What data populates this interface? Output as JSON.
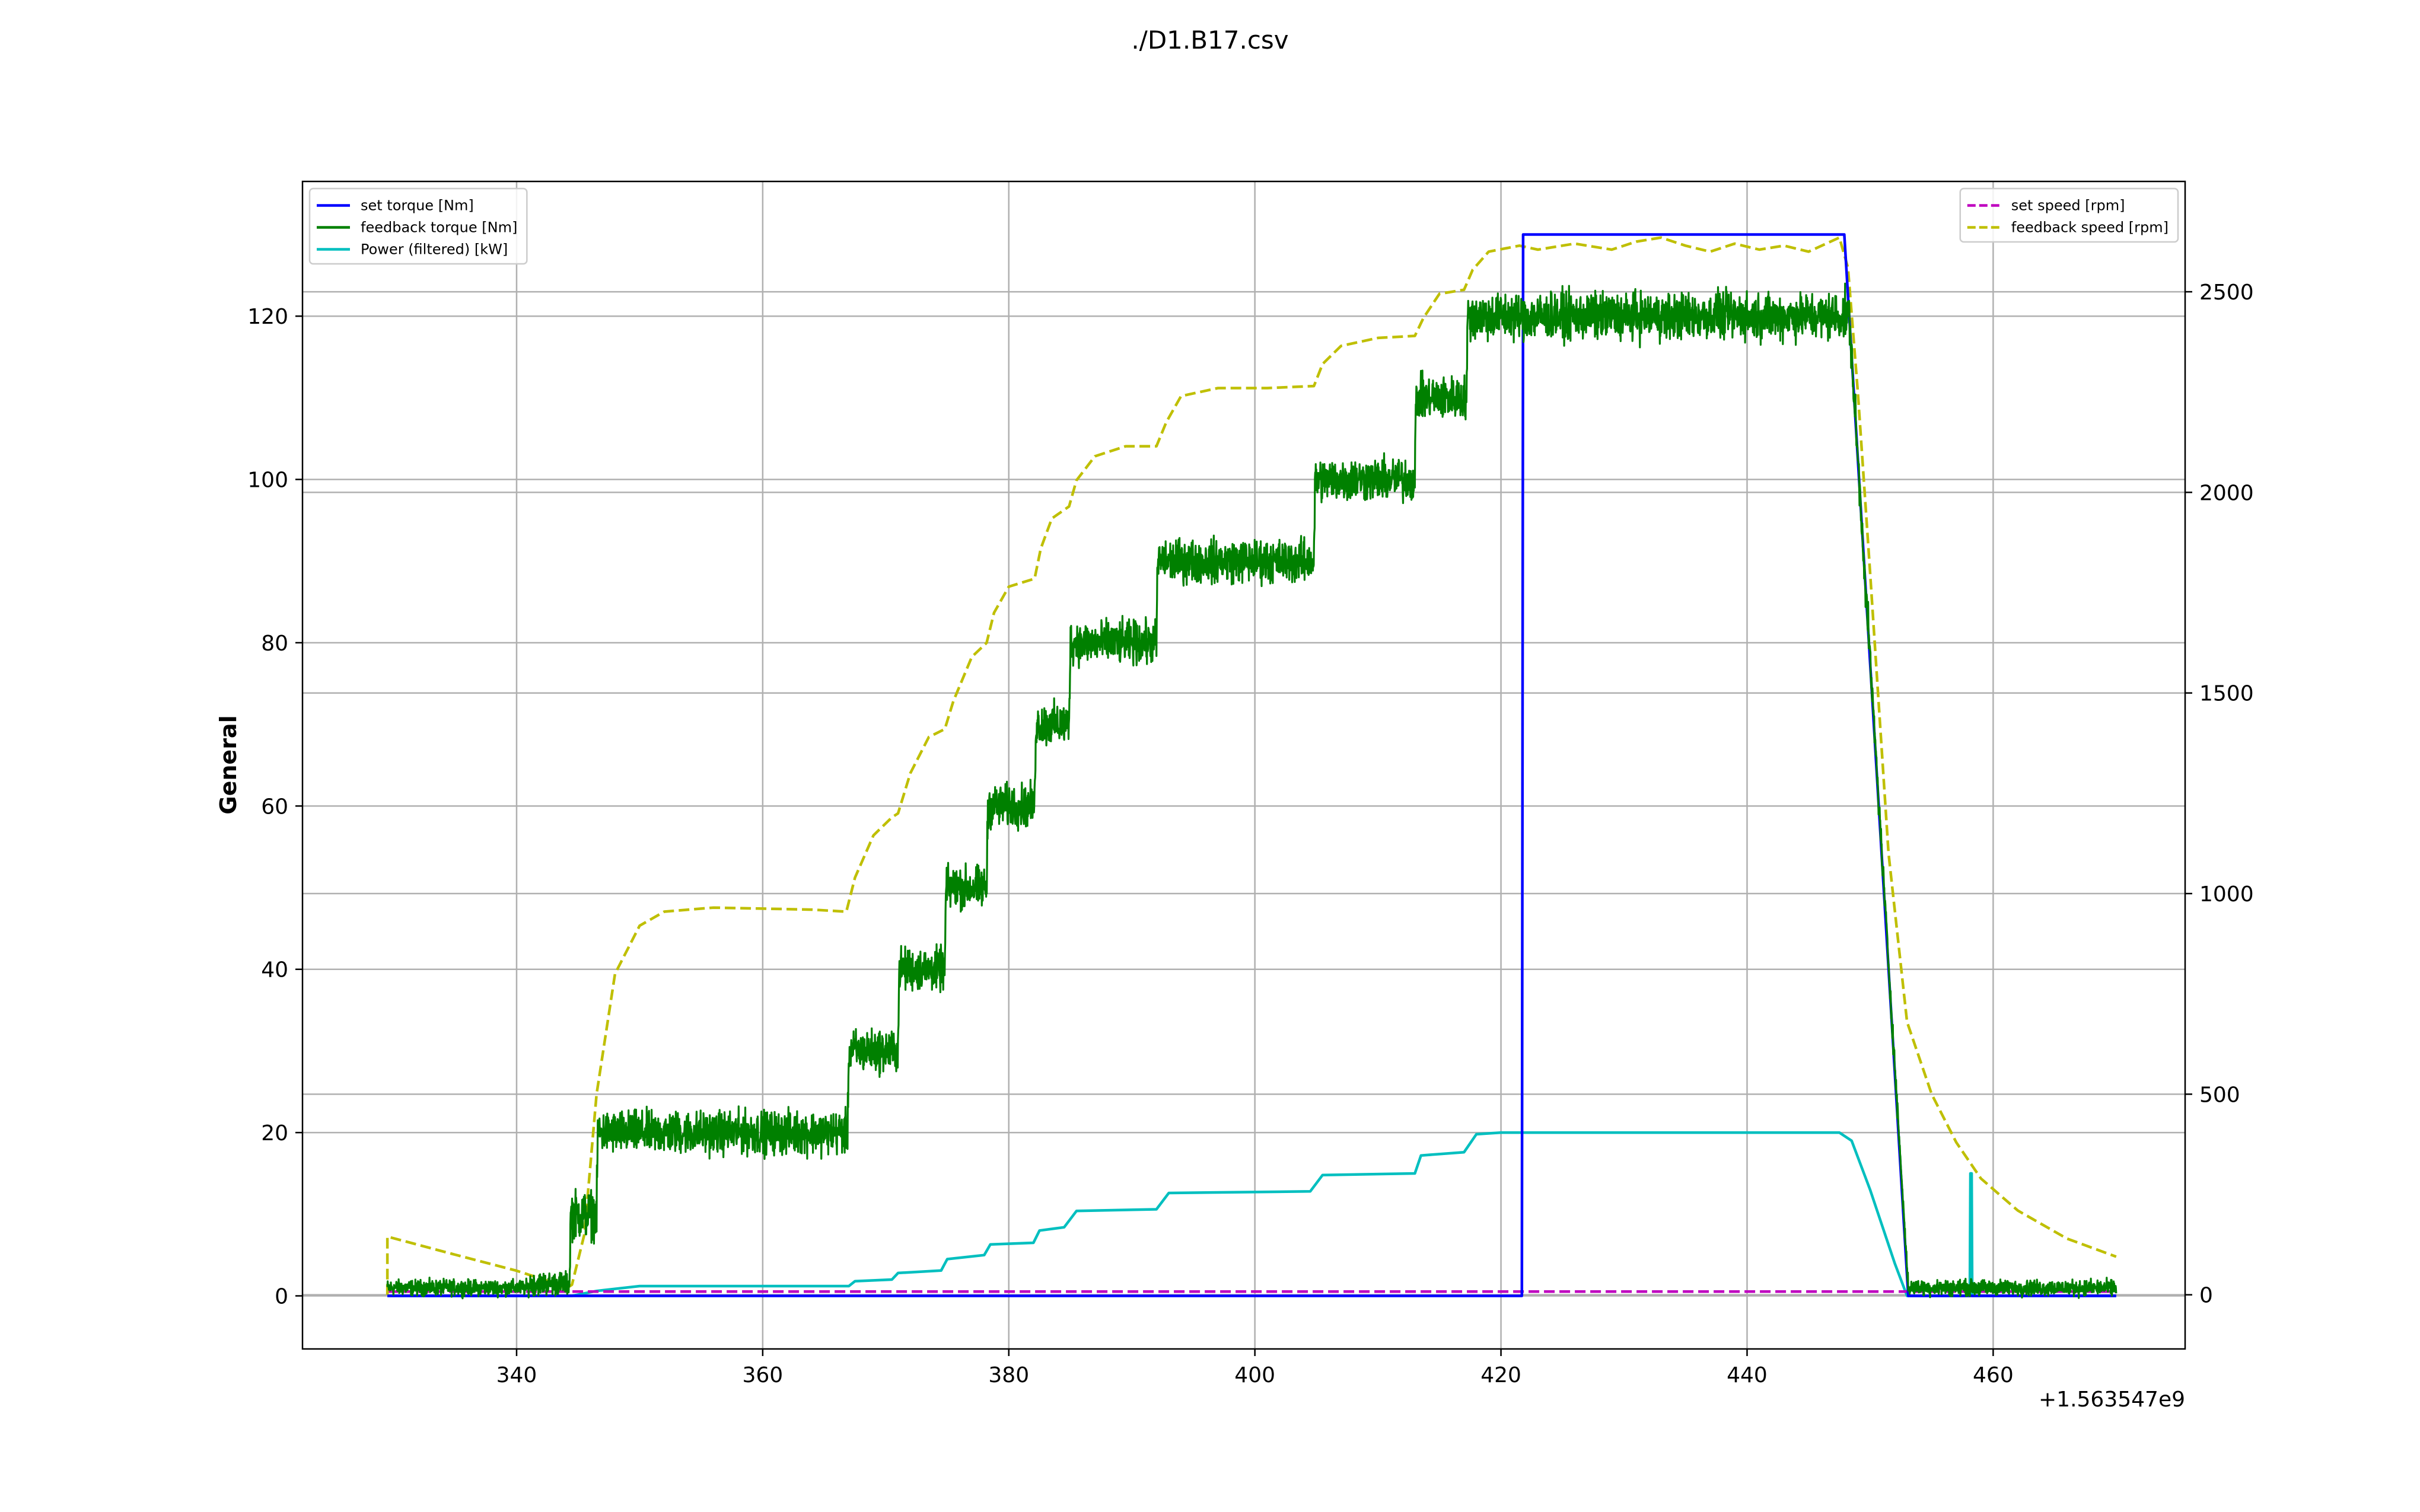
{
  "chart_data": {
    "type": "line",
    "title": "./D1.B17.csv",
    "xlabel": "",
    "ylabel": "General",
    "y2label": "",
    "x_offset_label": "+1.563547e9",
    "xlim": [
      322.6,
      475.6
    ],
    "ylim": [
      -6.5,
      136.5
    ],
    "y2lim": [
      -135,
      2775
    ],
    "x_ticks": [
      340,
      360,
      380,
      400,
      420,
      440,
      460
    ],
    "y_ticks": [
      0,
      20,
      40,
      60,
      80,
      100,
      120
    ],
    "y2_ticks": [
      0,
      500,
      1000,
      1500,
      2000,
      2500
    ],
    "grid": true,
    "legend_left_position": "upper-left",
    "legend_right_position": "upper-right",
    "series": [
      {
        "name": "set torque [Nm]",
        "axis": "left",
        "color": "#0000ff",
        "dash": "solid",
        "x": [
          329.5,
          421.7,
          421.8,
          447.9,
          448.3,
          453.1,
          470.0
        ],
        "y": [
          0,
          0,
          130,
          130,
          120,
          0,
          0
        ]
      },
      {
        "name": "feedback torque [Nm]",
        "axis": "left",
        "color": "#008000",
        "dash": "solid",
        "noisy": true,
        "x": [
          329.5,
          341.0,
          341.1,
          344.3,
          344.4,
          346.5,
          346.6,
          366.9,
          367.0,
          371.0,
          371.1,
          374.8,
          374.9,
          378.2,
          378.3,
          382.1,
          382.2,
          384.9,
          385.0,
          392.0,
          392.1,
          404.8,
          404.9,
          413.0,
          413.1,
          417.2,
          417.3,
          448.3,
          453.1,
          470.0
        ],
        "y": [
          1,
          1,
          1.5,
          1.5,
          10,
          10,
          20,
          20,
          30,
          30,
          40,
          40,
          50,
          50,
          60,
          60,
          70,
          70,
          80,
          80,
          90,
          90,
          100,
          100,
          110,
          110,
          120,
          120,
          1,
          1
        ],
        "noise_amplitude": [
          0.8,
          0.8,
          1.2,
          1.2,
          2.5,
          2.5,
          2.2,
          2.2,
          2.2,
          2.2,
          2.2,
          2.2,
          2.2,
          2.2,
          2.2,
          2.2,
          2.2,
          2.2,
          2.2,
          2.2,
          2.2,
          2.2,
          2.2,
          2.2,
          2.2,
          2.2,
          2.4,
          2.4,
          0.8,
          0.8
        ]
      },
      {
        "name": "Power (filtered) [kW]",
        "axis": "left",
        "color": "#00bfbf",
        "dash": "solid",
        "x": [
          329.5,
          344.5,
          346.5,
          350,
          367,
          367.5,
          370.5,
          371,
          374.5,
          375,
          378,
          378.5,
          382,
          382.5,
          384.5,
          385.5,
          392,
          393,
          404.5,
          405.5,
          413,
          413.5,
          417,
          418,
          420,
          440,
          447.5,
          448.5,
          450,
          452,
          453,
          458.1,
          458.15,
          458.25,
          458.3,
          470
        ],
        "y": [
          0,
          0,
          0.6,
          1.2,
          1.2,
          1.8,
          2.0,
          2.8,
          3.1,
          4.5,
          5,
          6.3,
          6.5,
          8,
          8.4,
          10.4,
          10.6,
          12.6,
          12.8,
          14.8,
          15,
          17.2,
          17.6,
          19.8,
          20,
          20,
          20,
          19,
          13,
          4,
          0,
          0,
          15,
          15,
          0,
          0
        ]
      },
      {
        "name": "set speed [rpm]",
        "axis": "right",
        "color": "#bf00bf",
        "dash": "dashed",
        "x": [
          329.5,
          470.0
        ],
        "y": [
          8,
          8
        ]
      },
      {
        "name": "feedback speed [rpm]",
        "axis": "right",
        "color": "#bfbf00",
        "dash": "dashed",
        "x": [
          329.5,
          329.5,
          335,
          340,
          343,
          344,
          344.5,
          345.5,
          346.5,
          348,
          350,
          352,
          356,
          364,
          366.8,
          367.5,
          369,
          370.5,
          371,
          372,
          373.5,
          374.8,
          375.5,
          377,
          378.2,
          378.8,
          380,
          382.1,
          382.6,
          383.5,
          384.9,
          385.5,
          387,
          389.5,
          392,
          392.8,
          394,
          397,
          401,
          404.8,
          405.5,
          407,
          410,
          413,
          413.7,
          415,
          417,
          417.7,
          419,
          421.5,
          423,
          426,
          429,
          431,
          433,
          435,
          437,
          439,
          441,
          443,
          445,
          447.5,
          448.2,
          449,
          450,
          451.5,
          453,
          455,
          457,
          459,
          462,
          466,
          470
        ],
        "y": [
          0,
          145,
          100,
          60,
          30,
          15,
          25,
          150,
          500,
          800,
          920,
          955,
          965,
          960,
          955,
          1040,
          1145,
          1190,
          1200,
          1300,
          1390,
          1410,
          1480,
          1590,
          1625,
          1700,
          1765,
          1785,
          1860,
          1935,
          1965,
          2030,
          2090,
          2115,
          2115,
          2175,
          2240,
          2260,
          2260,
          2265,
          2320,
          2365,
          2385,
          2390,
          2435,
          2495,
          2505,
          2555,
          2600,
          2615,
          2605,
          2620,
          2605,
          2625,
          2635,
          2615,
          2600,
          2620,
          2605,
          2615,
          2600,
          2635,
          2560,
          2250,
          1800,
          1100,
          680,
          500,
          380,
          290,
          210,
          140,
          95
        ]
      }
    ]
  }
}
